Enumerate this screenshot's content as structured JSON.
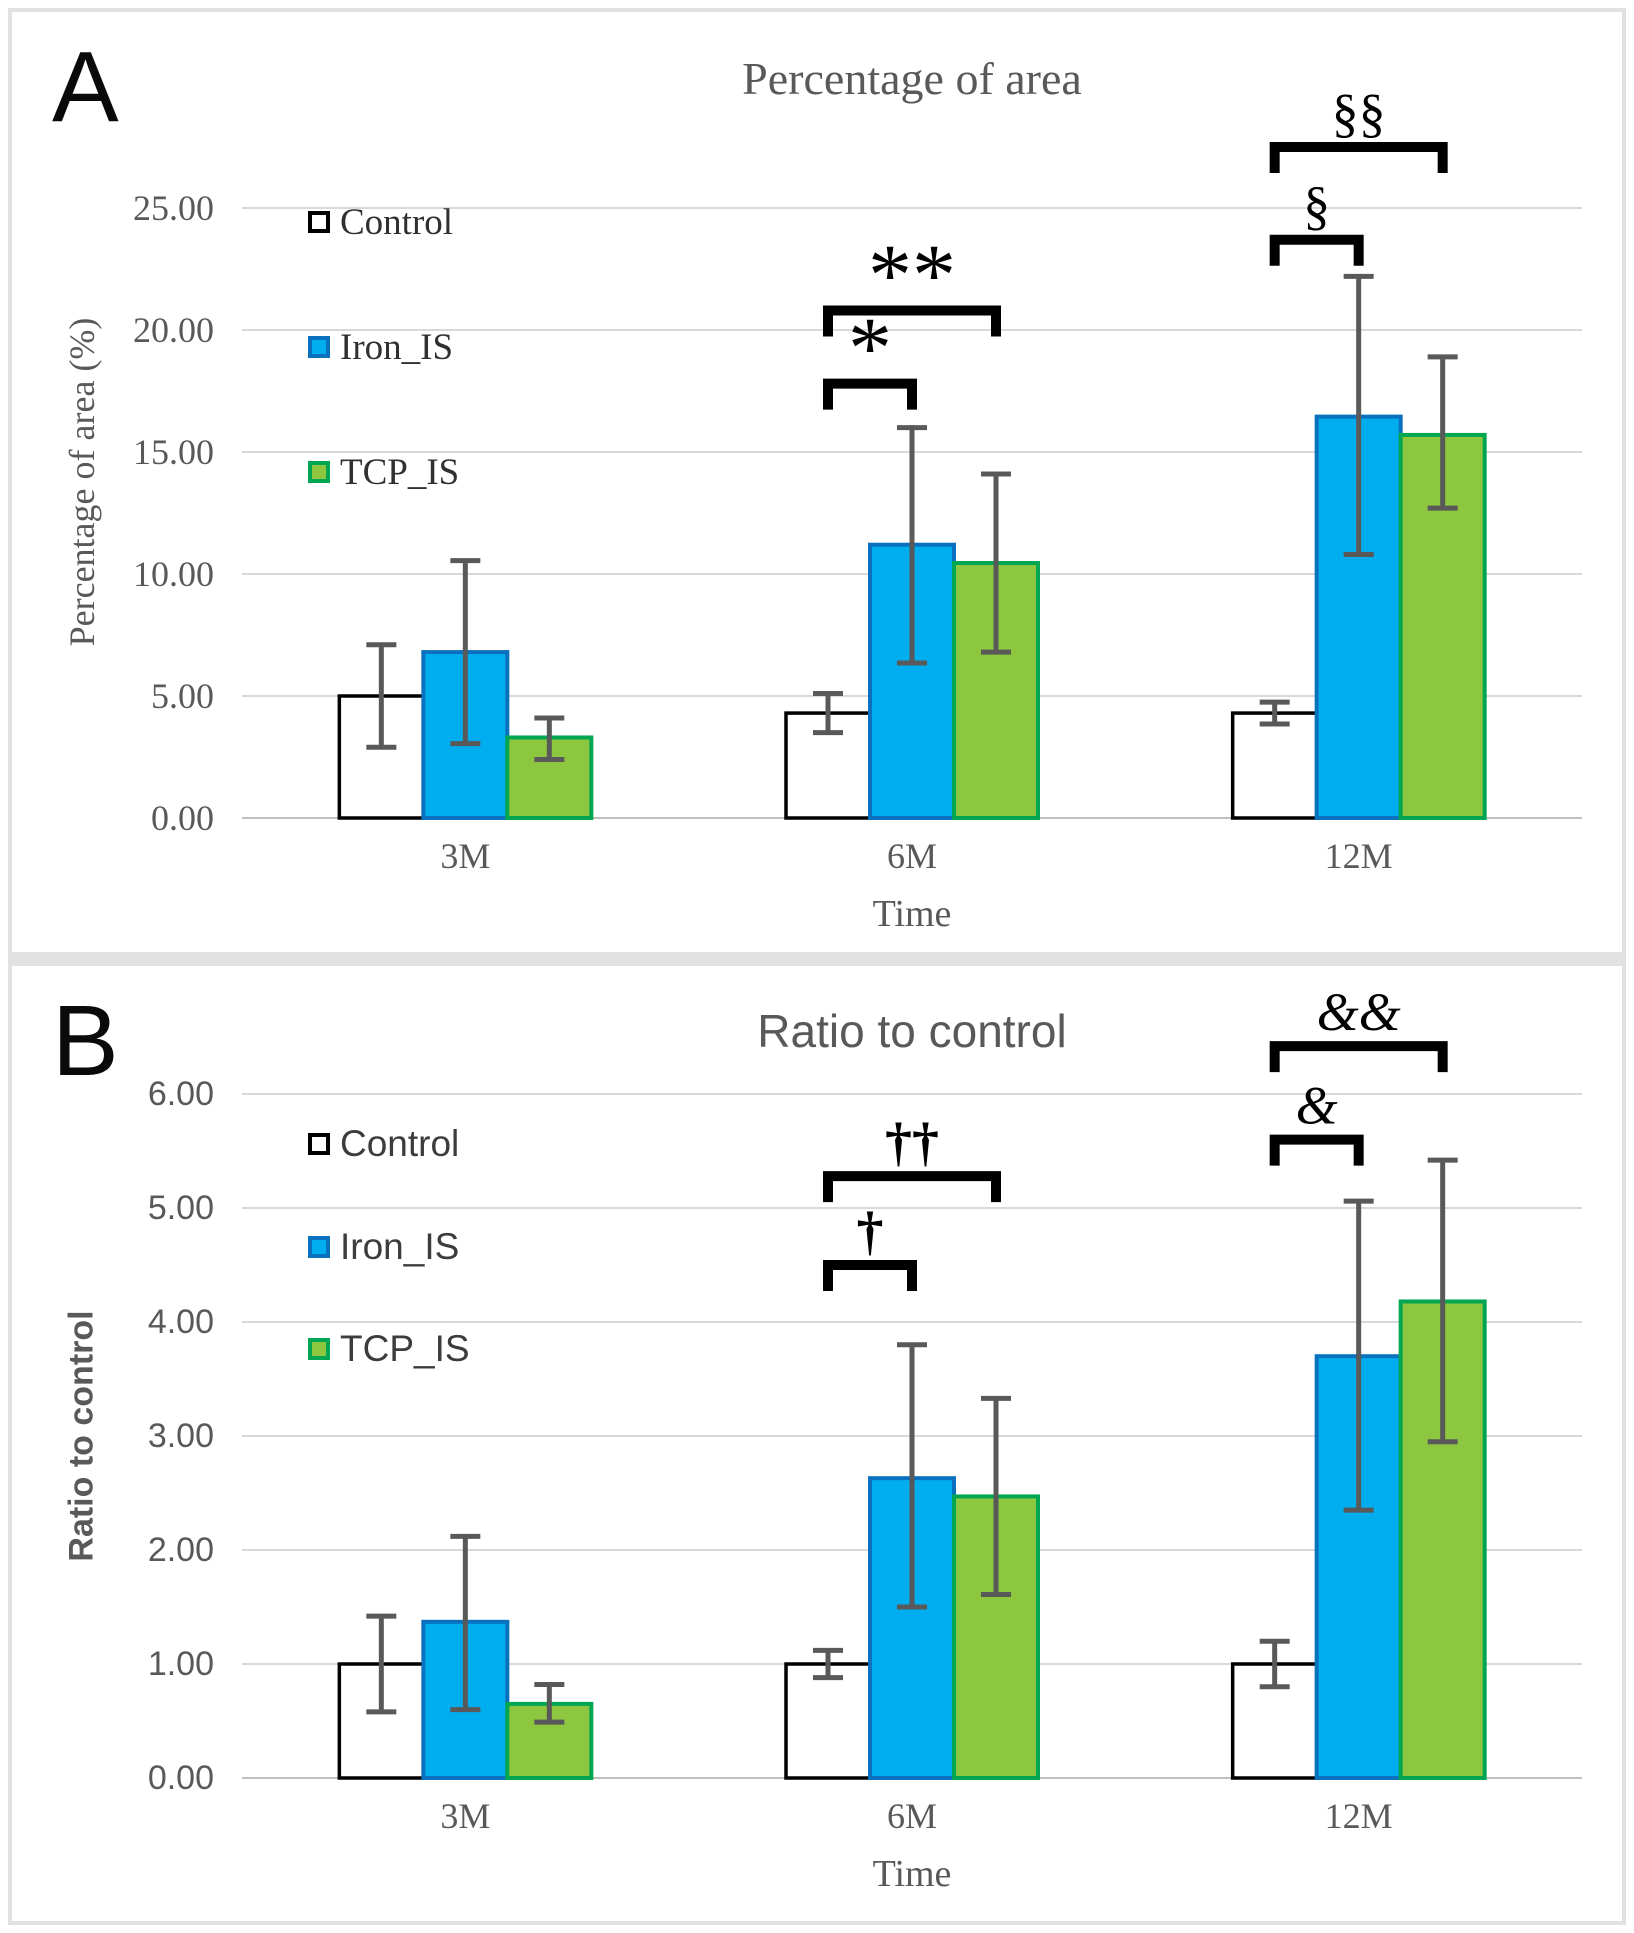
{
  "colors": {
    "control_fill": "#FFFFFF",
    "control_stroke": "#000000",
    "iron_fill": "#00AEEF",
    "iron_stroke": "#0971BE",
    "tcp_fill": "#8DC63F",
    "tcp_stroke": "#00A651",
    "error_bar": "#595959",
    "gridline": "#D9D9D9",
    "axis_line": "#BFBFBF",
    "muted_text": "#595959",
    "bracket": "#000000",
    "frame": "#E1E1E1"
  },
  "panels": {
    "a": {
      "letter": "A",
      "title": "Percentage of area",
      "y_axis_title": "Percentage of area (%)",
      "x_axis_title": "Time",
      "legend_items": [
        {
          "label": "Control"
        },
        {
          "label": "Iron_IS"
        },
        {
          "label": "TCP_IS"
        }
      ]
    },
    "b": {
      "letter": "B",
      "title": "Ratio to control",
      "y_axis_title": "Ratio to control",
      "x_axis_title": "Time",
      "legend_items": [
        {
          "label": "Control"
        },
        {
          "label": "Iron_IS"
        },
        {
          "label": "TCP_IS"
        }
      ]
    }
  },
  "chart_data": [
    {
      "type": "bar",
      "panel": "A",
      "title": "Percentage of area",
      "xlabel": "Time",
      "ylabel": "Percentage of area (%)",
      "categories": [
        "3M",
        "6M",
        "12M"
      ],
      "y_ticks": [
        "0.00",
        "5.00",
        "10.00",
        "15.00",
        "20.00",
        "25.00"
      ],
      "y_tick_values": [
        0,
        5,
        10,
        15,
        20,
        25
      ],
      "ylim": [
        0,
        25
      ],
      "grid": true,
      "legend_position": "upper-left-inside",
      "series": [
        {
          "name": "Control",
          "fill": "#FFFFFF",
          "stroke": "#000000",
          "values": [
            5.0,
            4.3,
            4.3
          ],
          "error_low": [
            2.9,
            3.5,
            3.85
          ],
          "error_high": [
            7.1,
            5.1,
            4.75
          ]
        },
        {
          "name": "Iron_IS",
          "fill": "#00AEEF",
          "stroke": "#0971BE",
          "values": [
            6.8,
            11.2,
            16.45
          ],
          "error_low": [
            3.05,
            6.35,
            10.8
          ],
          "error_high": [
            10.55,
            16.0,
            22.2
          ]
        },
        {
          "name": "TCP_IS",
          "fill": "#8DC63F",
          "stroke": "#00A651",
          "values": [
            3.3,
            10.45,
            15.7
          ],
          "error_low": [
            2.4,
            6.8,
            12.7
          ],
          "error_high": [
            4.1,
            14.1,
            18.9
          ]
        }
      ],
      "significance_brackets": [
        {
          "category": "6M",
          "from_series": 0,
          "to_series": 1,
          "label": "*",
          "y": 17.8
        },
        {
          "category": "6M",
          "from_series": 0,
          "to_series": 2,
          "label": "**",
          "y": 20.8
        },
        {
          "category": "12M",
          "from_series": 0,
          "to_series": 1,
          "label": "§",
          "y": 23.7
        },
        {
          "category": "12M",
          "from_series": 0,
          "to_series": 2,
          "label": "§§",
          "y": 27.5
        }
      ]
    },
    {
      "type": "bar",
      "panel": "B",
      "title": "Ratio to control",
      "xlabel": "Time",
      "ylabel": "Ratio to control",
      "categories": [
        "3M",
        "6M",
        "12M"
      ],
      "y_ticks": [
        "0.00",
        "1.00",
        "2.00",
        "3.00",
        "4.00",
        "5.00",
        "6.00"
      ],
      "y_tick_values": [
        0,
        1,
        2,
        3,
        4,
        5,
        6
      ],
      "ylim": [
        0,
        6
      ],
      "grid": true,
      "legend_position": "upper-left-inside",
      "series": [
        {
          "name": "Control",
          "fill": "#FFFFFF",
          "stroke": "#000000",
          "values": [
            1.0,
            1.0,
            1.0
          ],
          "error_low": [
            0.58,
            0.88,
            0.8
          ],
          "error_high": [
            1.42,
            1.12,
            1.2
          ]
        },
        {
          "name": "Iron_IS",
          "fill": "#00AEEF",
          "stroke": "#0971BE",
          "values": [
            1.37,
            2.63,
            3.7
          ],
          "error_low": [
            0.6,
            1.5,
            2.35
          ],
          "error_high": [
            2.12,
            3.8,
            5.06
          ]
        },
        {
          "name": "TCP_IS",
          "fill": "#8DC63F",
          "stroke": "#00A651",
          "values": [
            0.65,
            2.47,
            4.18
          ],
          "error_low": [
            0.49,
            1.61,
            2.95
          ],
          "error_high": [
            0.82,
            3.33,
            5.42
          ]
        }
      ],
      "significance_brackets": [
        {
          "category": "6M",
          "from_series": 0,
          "to_series": 1,
          "label": "†",
          "y": 4.5
        },
        {
          "category": "6M",
          "from_series": 0,
          "to_series": 2,
          "label": "††",
          "y": 5.28
        },
        {
          "category": "12M",
          "from_series": 0,
          "to_series": 1,
          "label": "&",
          "y": 5.6
        },
        {
          "category": "12M",
          "from_series": 0,
          "to_series": 2,
          "label": "&&",
          "y": 6.42
        }
      ]
    }
  ]
}
